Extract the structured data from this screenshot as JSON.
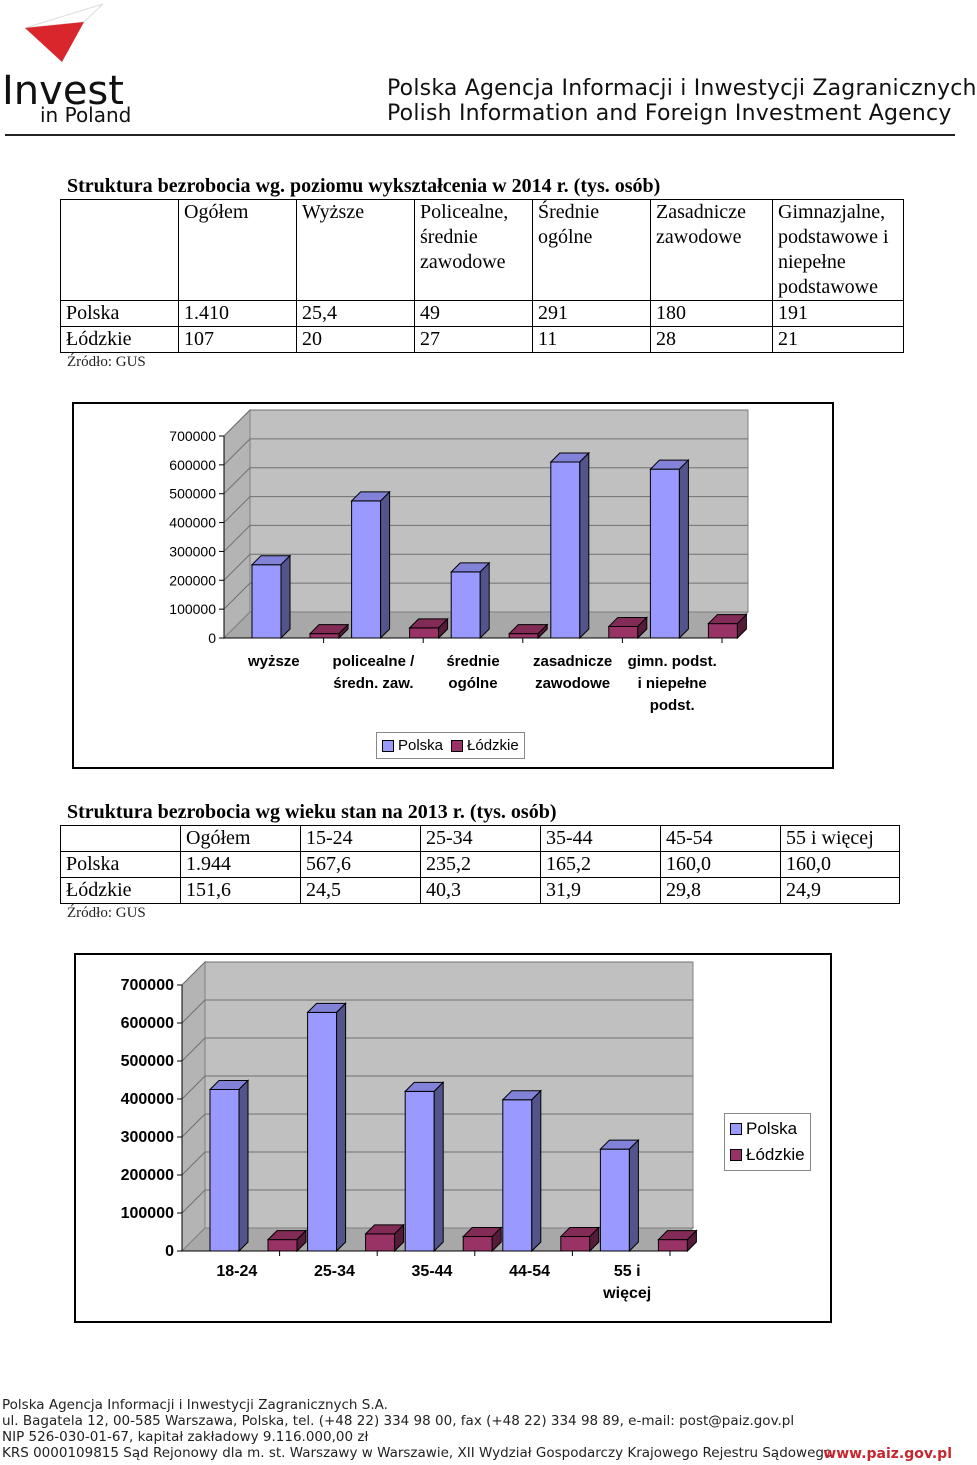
{
  "header": {
    "logo_line1": "Invest",
    "logo_line2": "in Poland",
    "agency_pl": "Polska Agencja Informacji i Inwestycji Zagranicznych",
    "agency_en": "Polish Information and Foreign Investment Agency"
  },
  "colors": {
    "polska": "#9999ff",
    "lodzkie": "#993366",
    "brand_red": "#c6262e"
  },
  "table1": {
    "title": "Struktura bezrobocia wg. poziomu wykształcenia w 2014 r. (tys. osób)",
    "headers": [
      "",
      "Ogółem",
      "Wyższe",
      "Policealne, średnie zawodowe",
      "Średnie ogólne",
      "Zasadnicze zawodowe",
      "Gimnazjalne, podstawowe i niepełne podstawowe"
    ],
    "rows": [
      [
        "Polska",
        "1.410",
        "25,4",
        "49",
        "291",
        "180",
        "191"
      ],
      [
        "Łódzkie",
        "107",
        "20",
        "27",
        "11",
        "28",
        "21"
      ]
    ],
    "source": "Źródło: GUS"
  },
  "table2": {
    "title": "Struktura bezrobocia wg wieku stan na 2013 r. (tys. osób)",
    "headers": [
      "",
      "Ogółem",
      "15-24",
      "25-34",
      "35-44",
      "45-54",
      "55 i więcej"
    ],
    "rows": [
      [
        "Polska",
        "1.944",
        "567,6",
        "235,2",
        "165,2",
        "160,0",
        "160,0"
      ],
      [
        "Łódzkie",
        "151,6",
        "24,5",
        "40,3",
        "31,9",
        "29,8",
        "24,9"
      ]
    ],
    "source": "Źródło: GUS"
  },
  "chart_data": [
    {
      "type": "bar",
      "categories": [
        [
          "wyższe"
        ],
        [
          "policealne /",
          "średn. zaw."
        ],
        [
          "średnie",
          "ogólne"
        ],
        [
          "zasadnicze",
          "zawodowe"
        ],
        [
          "gimn. podst.",
          "i niepełne",
          "podst."
        ]
      ],
      "series": [
        {
          "name": "Polska",
          "values": [
            254000,
            475000,
            229000,
            610000,
            585000
          ]
        },
        {
          "name": "Łódzkie",
          "values": [
            15000,
            35000,
            15000,
            40000,
            50000
          ]
        }
      ],
      "ylim": [
        0,
        700000
      ],
      "yticks": [
        "0",
        "100000",
        "200000",
        "300000",
        "400000",
        "500000",
        "600000",
        "700000"
      ],
      "legend": "bottom",
      "grid": true
    },
    {
      "type": "bar",
      "categories": [
        [
          "18-24"
        ],
        [
          "25-34"
        ],
        [
          "35-44"
        ],
        [
          "44-54"
        ],
        [
          "55 i",
          "więcej"
        ]
      ],
      "series": [
        {
          "name": "Polska",
          "values": [
            425000,
            628000,
            420000,
            398000,
            268000
          ]
        },
        {
          "name": "Łódzkie",
          "values": [
            30000,
            45000,
            38000,
            38000,
            30000
          ]
        }
      ],
      "ylim": [
        0,
        700000
      ],
      "yticks": [
        "0",
        "100000",
        "200000",
        "300000",
        "400000",
        "500000",
        "600000",
        "700000"
      ],
      "legend": "right",
      "grid": true
    }
  ],
  "footer": {
    "line1": "Polska Agencja Informacji i Inwestycji Zagranicznych S.A.",
    "line2": "ul. Bagatela 12, 00-585 Warszawa, Polska, tel. (+48 22) 334 98 00, fax (+48 22) 334 98 89, e-mail: post@paiz.gov.pl",
    "line3": "NIP 526-030-01-67, kapitał zakładowy 9.116.000,00 zł",
    "line4": "KRS 0000109815 Sąd Rejonowy dla m. st. Warszawy w Warszawie, XII Wydział Gospodarczy Krajowego Rejestru Sądowego",
    "url": "www.paiz.gov.pl"
  }
}
